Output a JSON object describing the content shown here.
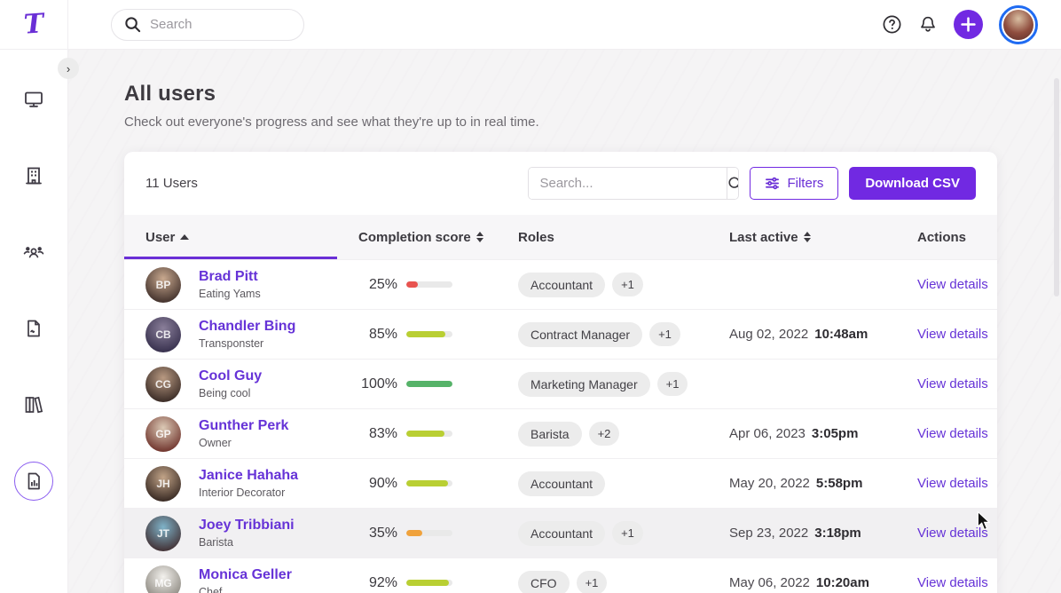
{
  "colors": {
    "accent": "#7129e2",
    "link": "#6633d7",
    "bar_track": "#e9e9e9",
    "bar_red": "#e8534f",
    "bar_orange": "#f0a23c",
    "bar_lime": "#b9cf33",
    "bar_green": "#56b369",
    "avatar_ring": "#1f6bf2"
  },
  "topbar": {
    "search_placeholder": "Search"
  },
  "sidebar": {
    "items": [
      {
        "icon": "monitor-icon"
      },
      {
        "icon": "building-icon"
      },
      {
        "icon": "team-icon"
      },
      {
        "icon": "document-icon"
      },
      {
        "icon": "library-icon"
      },
      {
        "icon": "report-icon",
        "active": true
      }
    ]
  },
  "page": {
    "title": "All users",
    "subtitle": "Check out everyone's progress and see what they're up to in real time."
  },
  "toolbar": {
    "users_count": "11 Users",
    "search_placeholder": "Search...",
    "filters_label": "Filters",
    "download_csv_label": "Download CSV"
  },
  "table": {
    "columns": [
      {
        "label": "User",
        "sort": "asc"
      },
      {
        "label": "Completion score",
        "sort": "both"
      },
      {
        "label": "Roles",
        "sort": "none"
      },
      {
        "label": "Last active",
        "sort": "both"
      },
      {
        "label": "Actions",
        "sort": "none"
      }
    ],
    "rows": [
      {
        "name": "Brad Pitt",
        "subtitle": "Eating Yams",
        "initials": "BP",
        "score": "25%",
        "score_value": 25,
        "bar": "bar_red",
        "role": "Accountant",
        "extra": "+1",
        "date": "",
        "time": "",
        "action": "View details",
        "avatar": [
          "#c9a98f",
          "#46352f"
        ]
      },
      {
        "name": "Chandler Bing",
        "subtitle": "Transponster",
        "initials": "CB",
        "score": "85%",
        "score_value": 85,
        "bar": "bar_lime",
        "role": "Contract Manager",
        "extra": "+1",
        "date": "Aug 02, 2022",
        "time": "10:48am",
        "action": "View details",
        "avatar": [
          "#8a7f9a",
          "#3a3350"
        ]
      },
      {
        "name": "Cool Guy",
        "subtitle": "Being cool",
        "initials": "CG",
        "score": "100%",
        "score_value": 100,
        "bar": "bar_green",
        "role": "Marketing Manager",
        "extra": "+1",
        "date": "",
        "time": "",
        "action": "View details",
        "avatar": [
          "#b99a82",
          "#3e2f29"
        ]
      },
      {
        "name": "Gunther Perk",
        "subtitle": "Owner",
        "initials": "GP",
        "score": "83%",
        "score_value": 83,
        "bar": "bar_lime",
        "role": "Barista",
        "extra": "+2",
        "date": "Apr 06, 2023",
        "time": "3:05pm",
        "action": "View details",
        "avatar": [
          "#dccab6",
          "#743a32"
        ]
      },
      {
        "name": "Janice Hahaha",
        "subtitle": "Interior Decorator",
        "initials": "JH",
        "score": "90%",
        "score_value": 90,
        "bar": "bar_lime",
        "role": "Accountant",
        "extra": "",
        "date": "May 20, 2022",
        "time": "5:58pm",
        "action": "View details",
        "avatar": [
          "#c2a488",
          "#3c2d26"
        ]
      },
      {
        "name": "Joey Tribbiani",
        "subtitle": "Barista",
        "initials": "JT",
        "score": "35%",
        "score_value": 35,
        "bar": "bar_orange",
        "role": "Accountant",
        "extra": "+1",
        "date": "Sep 23, 2022",
        "time": "3:18pm",
        "action": "View details",
        "avatar": [
          "#7fb3c9",
          "#443539"
        ],
        "hover": true
      },
      {
        "name": "Monica Geller",
        "subtitle": "Chef",
        "initials": "MG",
        "score": "92%",
        "score_value": 92,
        "bar": "bar_lime",
        "role": "CFO",
        "extra": "+1",
        "date": "May 06, 2022",
        "time": "10:20am",
        "action": "View details",
        "avatar": [
          "#f4f2ee",
          "#8e8a82"
        ]
      }
    ]
  }
}
